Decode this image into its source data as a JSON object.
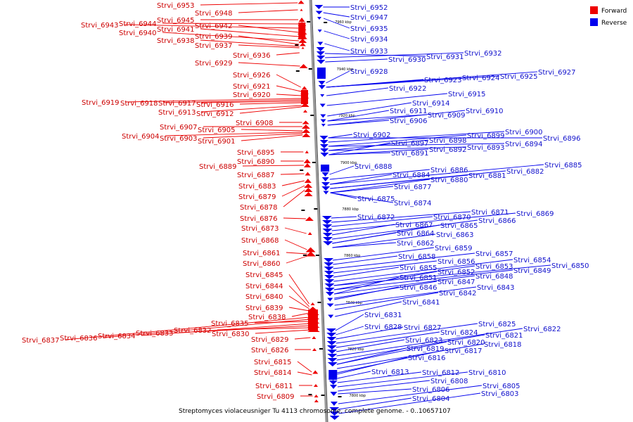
{
  "caption": "Streptomyces violaceusniger Tu 4113 chromosome, complete genome. - 0..10657107",
  "legend": [
    {
      "label": "Forward",
      "color": "#ee0000"
    },
    {
      "label": "Reverse",
      "color": "#0000ee"
    }
  ],
  "colors": {
    "forward": "#ee0000",
    "reverse": "#0000ee",
    "forward_text": "#cc0000",
    "reverse_text": "#1010cc",
    "axis": "#9a9a9a"
  },
  "scale_ticks": [
    "7960 kbp",
    "7940 kbp",
    "7920 kbp",
    "7900 kbp",
    "7880 kbp",
    "7860 kbp",
    "7840 kbp",
    "7820 kbp",
    "7800 kbp"
  ],
  "forward_genes": [
    "Strvi_6953",
    "Strvi_6948",
    "Strvi_6945",
    "Strvi_6944",
    "Strvi_6943",
    "Strvi_6942",
    "Strvi_6941",
    "Strvi_6940",
    "Strvi_6939",
    "Strvi_6938",
    "Strvi_6937",
    "Strvi_6936",
    "Strvi_6929",
    "Strvi_6926",
    "Strvi_6921",
    "Strvi_6920",
    "Strvi_6919",
    "Strvi_6918",
    "Strvi_6917",
    "Strvi_6916",
    "Strvi_6913",
    "Strvi_6912",
    "Strvi_6908",
    "Strvi_6907",
    "Strvi_6905",
    "Strvi_6904",
    "Strvi_6903",
    "Strvi_6901",
    "Strvi_6895",
    "Strvi_6890",
    "Strvi_6889",
    "Strvi_6887",
    "Strvi_6883",
    "Strvi_6879",
    "Strvi_6878",
    "Strvi_6876",
    "Strvi_6873",
    "Strvi_6868",
    "Strvi_6861",
    "Strvi_6860",
    "Strvi_6845",
    "Strvi_6844",
    "Strvi_6840",
    "Strvi_6839",
    "Strvi_6838",
    "Strvi_6837",
    "Strvi_6836",
    "Strvi_6835",
    "Strvi_6834",
    "Strvi_6833",
    "Strvi_6832",
    "Strvi_6830",
    "Strvi_6829",
    "Strvi_6826",
    "Strvi_6815",
    "Strvi_6814",
    "Strvi_6811",
    "Strvi_6809"
  ],
  "reverse_genes": [
    "Strvi_6952",
    "Strvi_6947",
    "Strvi_6935",
    "Strvi_6934",
    "Strvi_6933",
    "Strvi_6932",
    "Strvi_6931",
    "Strvi_6930",
    "Strvi_6928",
    "Strvi_6927",
    "Strvi_6925",
    "Strvi_6924",
    "Strvi_6923",
    "Strvi_6922",
    "Strvi_6915",
    "Strvi_6914",
    "Strvi_6911",
    "Strvi_6910",
    "Strvi_6909",
    "Strvi_6906",
    "Strvi_6902",
    "Strvi_6900",
    "Strvi_6899",
    "Strvi_6898",
    "Strvi_6897",
    "Strvi_6896",
    "Strvi_6894",
    "Strvi_6893",
    "Strvi_6892",
    "Strvi_6891",
    "Strvi_6888",
    "Strvi_6886",
    "Strvi_6885",
    "Strvi_6884",
    "Strvi_6882",
    "Strvi_6881",
    "Strvi_6880",
    "Strvi_6877",
    "Strvi_6875",
    "Strvi_6874",
    "Strvi_6872",
    "Strvi_6871",
    "Strvi_6870",
    "Strvi_6869",
    "Strvi_6867",
    "Strvi_6866",
    "Strvi_6865",
    "Strvi_6864",
    "Strvi_6863",
    "Strvi_6862",
    "Strvi_6859",
    "Strvi_6858",
    "Strvi_6857",
    "Strvi_6856",
    "Strvi_6855",
    "Strvi_6854",
    "Strvi_6853",
    "Strvi_6852",
    "Strvi_6851",
    "Strvi_6850",
    "Strvi_6849",
    "Strvi_6848",
    "Strvi_6847",
    "Strvi_6846",
    "Strvi_6843",
    "Strvi_6842",
    "Strvi_6841",
    "Strvi_6831",
    "Strvi_6828",
    "Strvi_6827",
    "Strvi_6825",
    "Strvi_6824",
    "Strvi_6823",
    "Strvi_6822",
    "Strvi_6821",
    "Strvi_6820",
    "Strvi_6819",
    "Strvi_6818",
    "Strvi_6817",
    "Strvi_6816",
    "Strvi_6813",
    "Strvi_6812",
    "Strvi_6810",
    "Strvi_6808",
    "Strvi_6806",
    "Strvi_6805",
    "Strvi_6804",
    "Strvi_6803"
  ]
}
